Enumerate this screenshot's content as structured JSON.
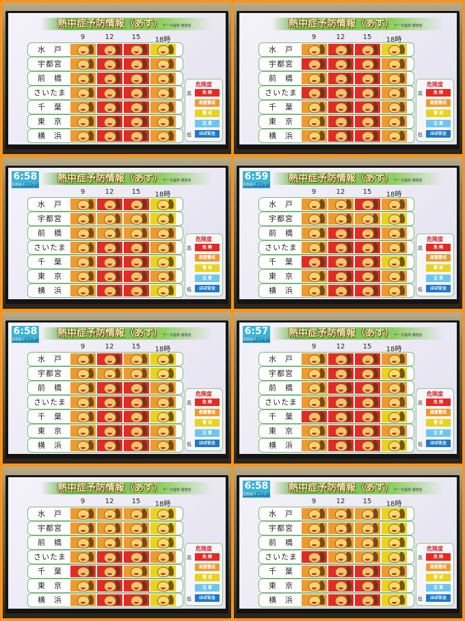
{
  "title": "熱中症予防情報（あす）",
  "source": "データ提供 環境省",
  "network": "首都圏ネットワーク",
  "hours": [
    "9",
    "12",
    "15",
    "18時"
  ],
  "cities": [
    "水　戸",
    "宇都宮",
    "前　橋",
    "さいたま",
    "千　葉",
    "東　京",
    "横　浜"
  ],
  "legend": {
    "heading": "危険度",
    "high": "高",
    "low": "低",
    "levels": [
      {
        "code": "D",
        "label": "危 険",
        "color": "#e52a24"
      },
      {
        "code": "S",
        "label": "厳重警戒",
        "color": "#ef9a2e"
      },
      {
        "code": "K",
        "label": "警 戒",
        "color": "#e8d31e"
      },
      {
        "code": "C",
        "label": "注 意",
        "color": "#6ec6ee"
      },
      {
        "code": "A",
        "label": "ほぼ安全",
        "color": "#1f78c8"
      }
    ]
  },
  "panels": [
    {
      "clock": "",
      "grid": [
        "SDDK",
        "SDDS",
        "SDDS",
        "SDDS",
        "SDDS",
        "SDDS",
        "SDDS"
      ]
    },
    {
      "clock": "",
      "grid": [
        "SDDK",
        "DDDS",
        "SDDS",
        "DDDS",
        "SDDS",
        "SDDS",
        "SDDS"
      ]
    },
    {
      "clock": "6:58",
      "grid": [
        "SDDK",
        "SSSK",
        "SSSS",
        "SDDS",
        "SDDK",
        "SDDS",
        "SDDK"
      ]
    },
    {
      "clock": "6:59",
      "grid": [
        "SSDS",
        "SSSK",
        "SDDS",
        "SDDS",
        "DDDK",
        "SDDS",
        "SDDS"
      ]
    },
    {
      "clock": "6:58",
      "grid": [
        "SDSK",
        "SSSK",
        "SDDS",
        "SDDS",
        "SDDK",
        "SDDS",
        "SDDS"
      ]
    },
    {
      "clock": "6:57",
      "grid": [
        "SDDS",
        "SDDK",
        "SDDS",
        "SDDS",
        "DDDK",
        "SDDS",
        "SDDK"
      ]
    },
    {
      "clock": "",
      "grid": [
        "SSSK",
        "SSSK",
        "SSSK",
        "SDDS",
        "DDSK",
        "SDDK",
        "SDDK"
      ]
    },
    {
      "clock": "6:58",
      "grid": [
        "SSSK",
        "SSSK",
        "SSSK",
        "DSSK",
        "SDDS",
        "SDDK",
        "SDDK"
      ]
    }
  ]
}
